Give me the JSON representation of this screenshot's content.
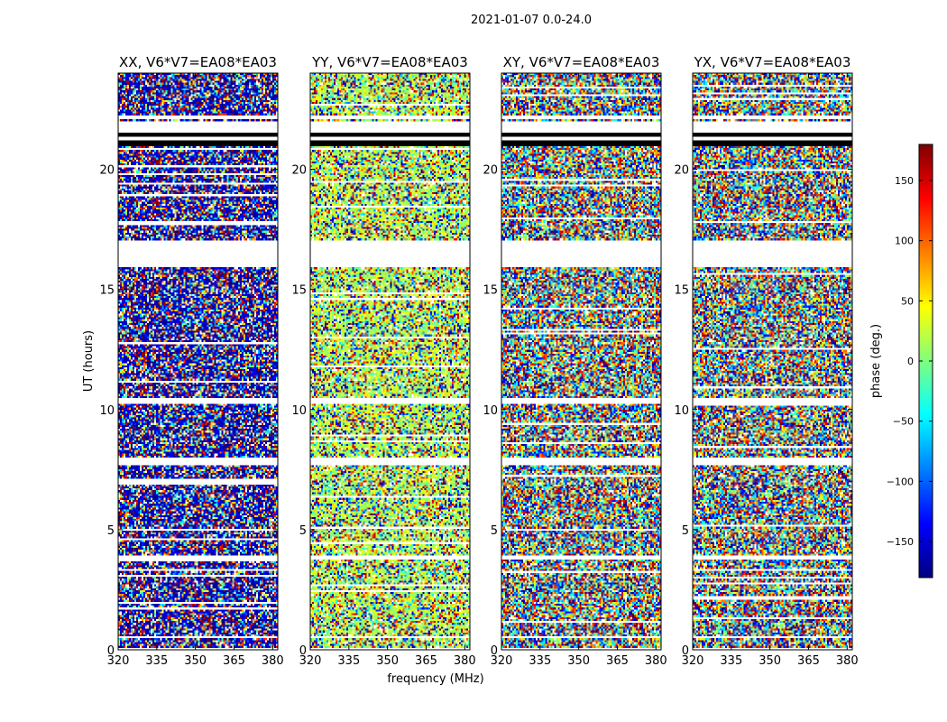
{
  "chart_data": {
    "type": "heatmap",
    "title": "2021-01-07 0.0-24.0",
    "xlabel": "frequency (MHz)",
    "ylabel": "UT (hours)",
    "xlim": [
      320,
      382
    ],
    "ylim": [
      0,
      24
    ],
    "x_ticks": [
      320,
      335,
      350,
      365,
      380
    ],
    "y_ticks": [
      0,
      5,
      10,
      15,
      20
    ],
    "panels": [
      {
        "name": "XX",
        "title": "XX, V6*V7=EA08*EA03",
        "phase_offset": -160,
        "coherent": true
      },
      {
        "name": "YY",
        "title": "YY, V6*V7=EA08*EA03",
        "phase_offset": 20,
        "coherent": true
      },
      {
        "name": "XY",
        "title": "XY, V6*V7=EA08*EA03",
        "phase_offset": 0,
        "coherent": false
      },
      {
        "name": "YX",
        "title": "YX, V6*V7=EA08*EA03",
        "phase_offset": 0,
        "coherent": false
      }
    ],
    "blank_ut_bands": [
      [
        0.0,
        0.05
      ],
      [
        0.45,
        0.6
      ],
      [
        0.85,
        0.9
      ],
      [
        3.8,
        3.95
      ],
      [
        7.7,
        8.0
      ],
      [
        10.25,
        10.45
      ],
      [
        15.95,
        17.05
      ],
      [
        20.95,
        22.0
      ],
      [
        22.1,
        22.25
      ]
    ],
    "flagged_ut_bands": [
      [
        21.0,
        21.2
      ],
      [
        21.4,
        21.55
      ]
    ],
    "colorbar": {
      "label": "phase (deg.)",
      "range": [
        -180,
        180
      ],
      "ticks": [
        150,
        100,
        50,
        0,
        -50,
        -100,
        -150
      ],
      "colors": [
        "#00007f",
        "#0000ff",
        "#007fff",
        "#00ffff",
        "#7fff7f",
        "#ffff00",
        "#ff7f00",
        "#ff0000",
        "#7f0000"
      ]
    }
  }
}
